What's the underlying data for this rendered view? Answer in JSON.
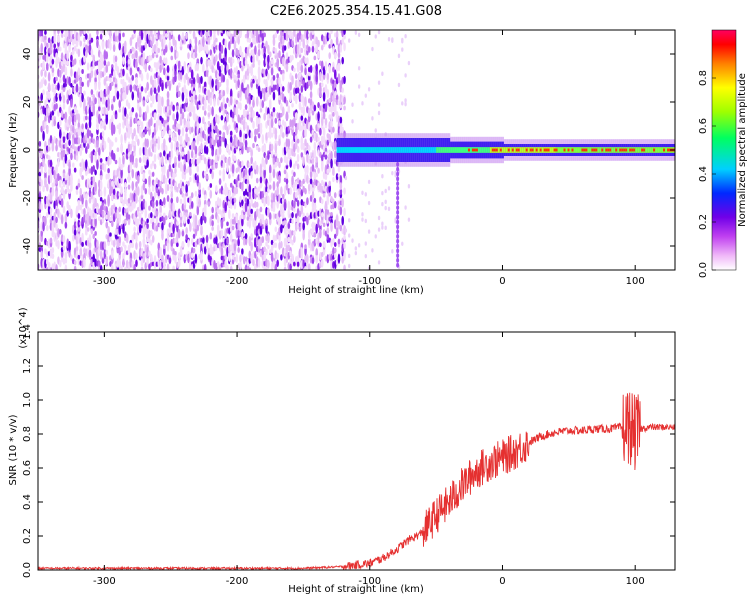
{
  "title": "C2E6.2025.354.15.41.G08",
  "chart_data": [
    {
      "type": "heatmap",
      "xlabel": "Height of straight line (km)",
      "ylabel": "Frequency (Hz)",
      "xlim": [
        -350,
        130
      ],
      "ylim": [
        -50,
        50
      ],
      "xticks": [
        -300,
        -200,
        -100,
        0,
        100
      ],
      "xtick_labels": [
        "-300",
        "-200",
        "-100",
        "0",
        "100"
      ],
      "yticks": [
        -40,
        -20,
        0,
        20,
        40
      ],
      "ytick_labels": [
        "-40",
        "-20",
        "0",
        "20",
        "40"
      ],
      "colorbar": {
        "label": "Normalized spectral amplitude",
        "range": [
          0,
          1
        ],
        "ticks": [
          0.0,
          0.2,
          0.4,
          0.6,
          0.8
        ],
        "tick_labels": [
          "0.0",
          "0.2",
          "0.4",
          "0.6",
          "0.8"
        ],
        "colormap": "rainbow (white-magenta-purple-blue-cyan-green-yellow-red)"
      },
      "features": {
        "noise_region_x": [
          -350,
          -120
        ],
        "signal_band_center_hz": 0,
        "signal_start_x": -125
      }
    },
    {
      "type": "line",
      "xlabel": "Height of straight line (km)",
      "ylabel": "SNR (10 * v/v)",
      "y_multiplier": "(x10^4)",
      "xlim": [
        -350,
        130
      ],
      "ylim": [
        0,
        1.4
      ],
      "xticks": [
        -300,
        -200,
        -100,
        0,
        100
      ],
      "xtick_labels": [
        "-300",
        "-200",
        "-100",
        "0",
        "100"
      ],
      "yticks": [
        0.0,
        0.2,
        0.4,
        0.6,
        0.8,
        1.0,
        1.2,
        1.4
      ],
      "ytick_labels": [
        "0.0",
        "0.2",
        "0.4",
        "0.6",
        "0.8",
        "1.0",
        "1.2",
        "1.4"
      ],
      "color": "#e53030",
      "series": [
        {
          "x": [
            -350,
            -300,
            -250,
            -200,
            -150,
            -120,
            -100,
            -90,
            -80,
            -70,
            -60,
            -50,
            -40,
            -30,
            -20,
            -10,
            0,
            10,
            20,
            30,
            40,
            50,
            60,
            70,
            80,
            90,
            95,
            100,
            105,
            110,
            120,
            130
          ],
          "values": [
            0.01,
            0.01,
            0.01,
            0.01,
            0.01,
            0.02,
            0.04,
            0.07,
            0.12,
            0.18,
            0.22,
            0.32,
            0.4,
            0.5,
            0.58,
            0.63,
            0.66,
            0.7,
            0.75,
            0.79,
            0.81,
            0.82,
            0.82,
            0.83,
            0.83,
            0.84,
            0.85,
            0.8,
            0.83,
            0.84,
            0.84,
            0.84
          ]
        }
      ]
    }
  ]
}
